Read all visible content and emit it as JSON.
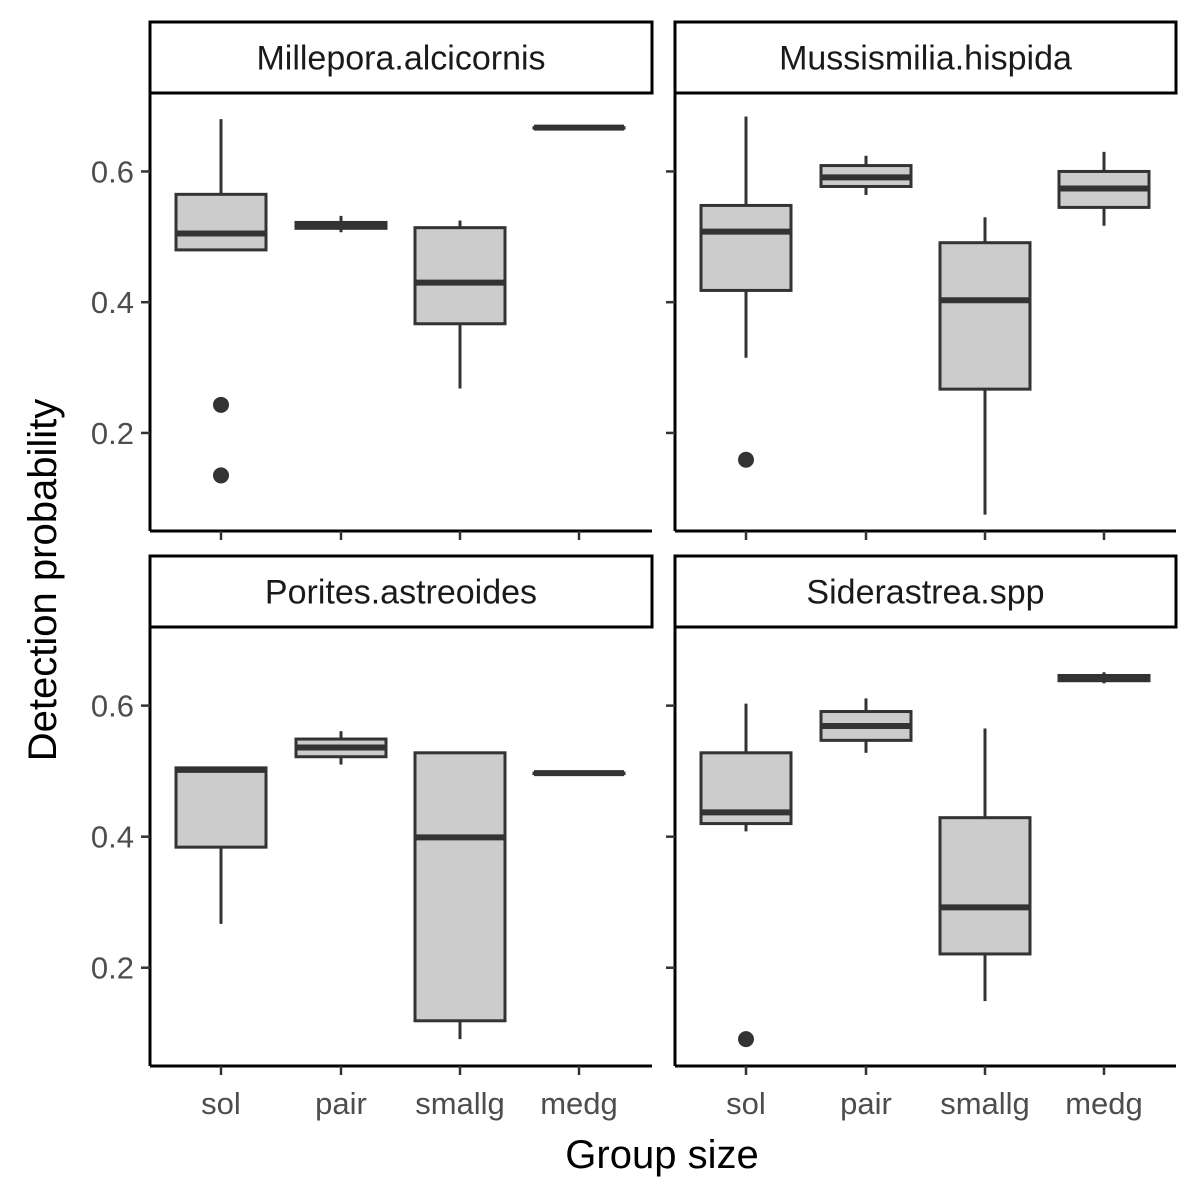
{
  "chart_data": {
    "type": "boxplot",
    "xlabel": "Group size",
    "ylabel": "Detection probability",
    "categories": [
      "sol",
      "pair",
      "smallg",
      "medg"
    ],
    "ylim": [
      0.05,
      0.72
    ],
    "yticks": [
      0.2,
      0.4,
      0.6
    ],
    "ytick_labels": [
      "0.2",
      "0.4",
      "0.6"
    ],
    "grid": false,
    "box_fill": "#cccccc",
    "line_color": "#333333",
    "panels": [
      {
        "title": "Millepora.alcicornis",
        "boxes": [
          {
            "category": "sol",
            "low": 0.48,
            "q1": 0.48,
            "median": 0.505,
            "q3": 0.565,
            "high": 0.68,
            "outliers": [
              0.243,
              0.135
            ]
          },
          {
            "category": "pair",
            "low": 0.507,
            "q1": 0.513,
            "median": 0.518,
            "q3": 0.522,
            "high": 0.532,
            "outliers": []
          },
          {
            "category": "smallg",
            "low": 0.268,
            "q1": 0.367,
            "median": 0.43,
            "q3": 0.514,
            "high": 0.525,
            "outliers": []
          },
          {
            "category": "medg",
            "low": 0.667,
            "q1": 0.667,
            "median": 0.667,
            "q3": 0.667,
            "high": 0.667,
            "outliers": []
          }
        ]
      },
      {
        "title": "Mussismilia.hispida",
        "boxes": [
          {
            "category": "sol",
            "low": 0.315,
            "q1": 0.418,
            "median": 0.508,
            "q3": 0.548,
            "high": 0.684,
            "outliers": [
              0.159
            ]
          },
          {
            "category": "pair",
            "low": 0.564,
            "q1": 0.577,
            "median": 0.591,
            "q3": 0.609,
            "high": 0.624,
            "outliers": []
          },
          {
            "category": "smallg",
            "low": 0.075,
            "q1": 0.267,
            "median": 0.403,
            "q3": 0.491,
            "high": 0.53,
            "outliers": []
          },
          {
            "category": "medg",
            "low": 0.517,
            "q1": 0.545,
            "median": 0.574,
            "q3": 0.6,
            "high": 0.63,
            "outliers": []
          }
        ]
      },
      {
        "title": "Porites.astreoides",
        "boxes": [
          {
            "category": "sol",
            "low": 0.267,
            "q1": 0.384,
            "median": 0.502,
            "q3": 0.505,
            "high": 0.505,
            "outliers": []
          },
          {
            "category": "pair",
            "low": 0.51,
            "q1": 0.522,
            "median": 0.536,
            "q3": 0.549,
            "high": 0.561,
            "outliers": []
          },
          {
            "category": "smallg",
            "low": 0.091,
            "q1": 0.119,
            "median": 0.399,
            "q3": 0.528,
            "high": 0.528,
            "outliers": []
          },
          {
            "category": "medg",
            "low": 0.497,
            "q1": 0.497,
            "median": 0.497,
            "q3": 0.497,
            "high": 0.497,
            "outliers": []
          }
        ]
      },
      {
        "title": "Siderastrea.spp",
        "boxes": [
          {
            "category": "sol",
            "low": 0.408,
            "q1": 0.42,
            "median": 0.437,
            "q3": 0.528,
            "high": 0.603,
            "outliers": [
              0.091
            ]
          },
          {
            "category": "pair",
            "low": 0.528,
            "q1": 0.547,
            "median": 0.569,
            "q3": 0.591,
            "high": 0.611,
            "outliers": []
          },
          {
            "category": "smallg",
            "low": 0.149,
            "q1": 0.221,
            "median": 0.292,
            "q3": 0.429,
            "high": 0.565,
            "outliers": []
          },
          {
            "category": "medg",
            "low": 0.634,
            "q1": 0.638,
            "median": 0.642,
            "q3": 0.646,
            "high": 0.651,
            "outliers": []
          }
        ]
      }
    ]
  }
}
